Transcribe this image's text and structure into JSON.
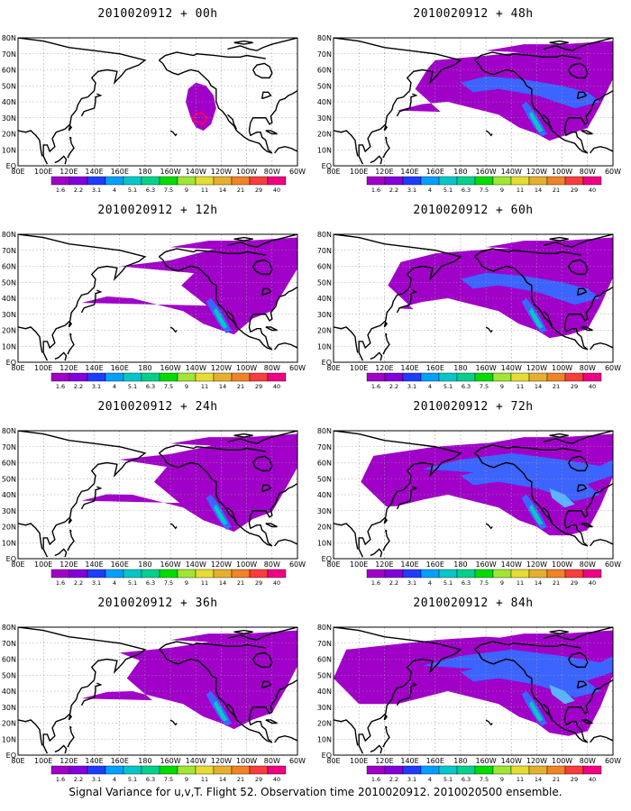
{
  "chart_data": {
    "type": "heatmap",
    "caption": "Signal Variance for u,v,T. Flight 52. Observation time 2010020912. 2010020500 ensemble.",
    "lat_labels": [
      "EQ",
      "10N",
      "20N",
      "30N",
      "40N",
      "50N",
      "60N",
      "70N",
      "80N"
    ],
    "lon_labels": [
      "80E",
      "100E",
      "120E",
      "140E",
      "160E",
      "180",
      "160W",
      "140W",
      "120W",
      "100W",
      "80W",
      "60W"
    ],
    "legend": {
      "levels": [
        "1.6",
        "2.2",
        "3.1",
        "4",
        "5.1",
        "6.3",
        "7.5",
        "9",
        "11",
        "14",
        "21",
        "29",
        "40"
      ],
      "colors": [
        "#a000c8",
        "#8200dc",
        "#1e3cff",
        "#00a0ff",
        "#00c8c8",
        "#00d28c",
        "#00dc00",
        "#a0e632",
        "#e6dc32",
        "#e6af2d",
        "#f08228",
        "#fa3c3c",
        "#f00082"
      ]
    },
    "panels": [
      {
        "title": "2010020912 + 00h",
        "lead_hours": 0
      },
      {
        "title": "2010020912 + 48h",
        "lead_hours": 48
      },
      {
        "title": "2010020912 + 12h",
        "lead_hours": 12
      },
      {
        "title": "2010020912 + 60h",
        "lead_hours": 60
      },
      {
        "title": "2010020912 + 24h",
        "lead_hours": 24
      },
      {
        "title": "2010020912 + 72h",
        "lead_hours": 72
      },
      {
        "title": "2010020912 + 36h",
        "lead_hours": 36
      },
      {
        "title": "2010020912 + 84h",
        "lead_hours": 84
      }
    ]
  }
}
